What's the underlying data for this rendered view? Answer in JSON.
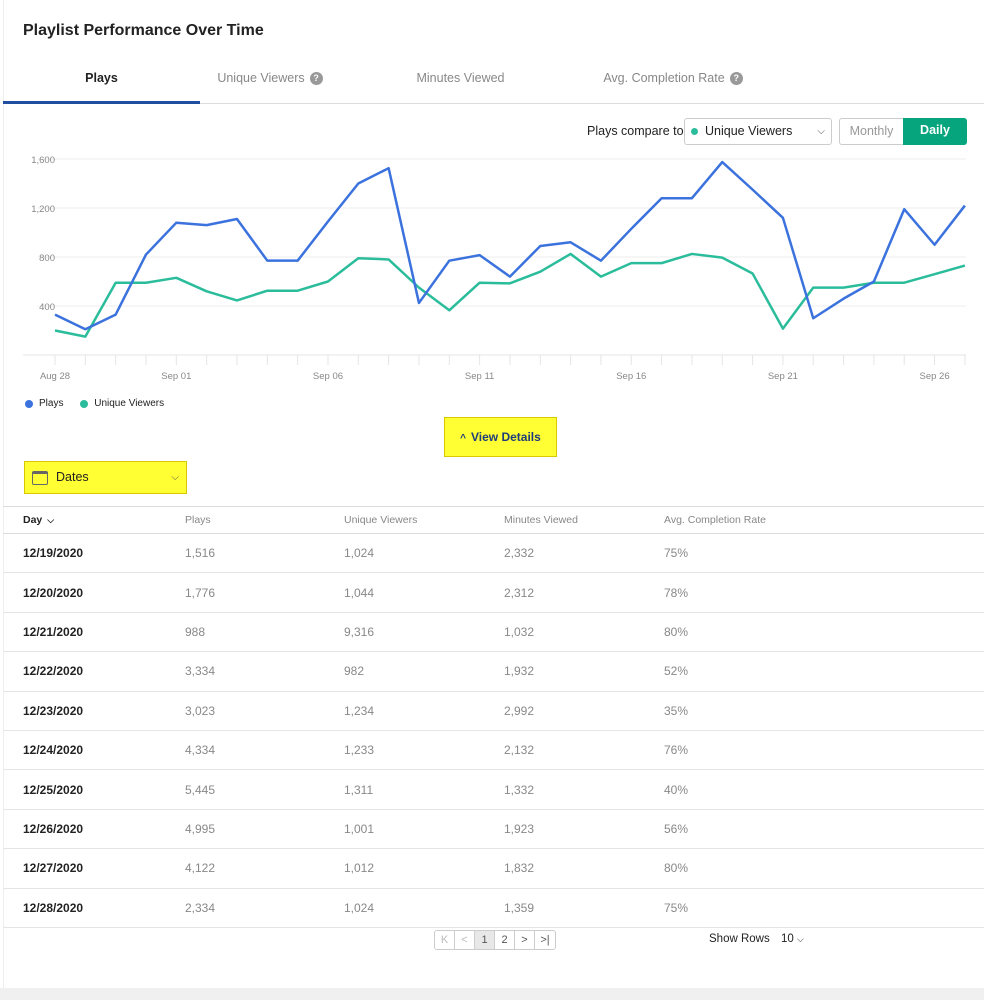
{
  "title": "Playlist Performance Over Time",
  "tabs": [
    {
      "label": "Plays",
      "active": true,
      "help": false
    },
    {
      "label": "Unique Viewers",
      "active": false,
      "help": true
    },
    {
      "label": "Minutes Viewed",
      "active": false,
      "help": false
    },
    {
      "label": "Avg. Completion Rate",
      "active": false,
      "help": true
    }
  ],
  "help_glyph": "?",
  "controls": {
    "compare_label": "Plays compare to",
    "compare_value": "Unique Viewers",
    "monthly": "Monthly",
    "daily": "Daily",
    "chevron": "⌵"
  },
  "colors": {
    "plays": "#3b72dd",
    "unique": "#2bbd9b",
    "accent": "#07a57e"
  },
  "chart_data": {
    "type": "line",
    "x_start": "Aug 28",
    "x_tick_labels": [
      "Aug 28",
      "Sep 01",
      "Sep 06",
      "Sep 11",
      "Sep 16",
      "Sep 21",
      "Sep 26"
    ],
    "x_tick_indices": [
      0,
      4,
      9,
      14,
      19,
      24,
      29
    ],
    "y_ticks": [
      400,
      800,
      1200,
      1600
    ],
    "y_tick_labels": [
      "400",
      "800",
      "1,200",
      "1,600"
    ],
    "ylim": [
      0,
      1600
    ],
    "grid": true,
    "legend": "bottom-left",
    "series": [
      {
        "name": "Plays",
        "values": [
          330,
          210,
          330,
          820,
          1080,
          1060,
          1110,
          770,
          770,
          1090,
          1400,
          1525,
          425,
          770,
          815,
          640,
          890,
          920,
          770,
          1030,
          1280,
          1280,
          1575,
          1350,
          1120,
          300,
          460,
          600,
          1190,
          900,
          1220
        ]
      },
      {
        "name": "Unique Viewers",
        "values": [
          200,
          150,
          590,
          590,
          630,
          520,
          445,
          525,
          525,
          600,
          790,
          780,
          550,
          365,
          590,
          585,
          680,
          825,
          640,
          750,
          750,
          825,
          795,
          665,
          215,
          550,
          550,
          590,
          590,
          660,
          730
        ]
      }
    ]
  },
  "legend": [
    "Plays",
    "Unique Viewers"
  ],
  "view_details": "View Details",
  "view_details_icon": "^",
  "dates_filter": "Dates",
  "table": {
    "headers": [
      "Day",
      "Plays",
      "Unique Viewers",
      "Minutes Viewed",
      "Avg. Completion Rate"
    ],
    "sort_icon": "⌵",
    "rows": [
      [
        "12/19/2020",
        "1,516",
        "1,024",
        "2,332",
        "75%"
      ],
      [
        "12/20/2020",
        "1,776",
        "1,044",
        "2,312",
        "78%"
      ],
      [
        "12/21/2020",
        "988",
        "9,316",
        "1,032",
        "80%"
      ],
      [
        "12/22/2020",
        "3,334",
        "982",
        "1,932",
        "52%"
      ],
      [
        "12/23/2020",
        "3,023",
        "1,234",
        "2,992",
        "35%"
      ],
      [
        "12/24/2020",
        "4,334",
        "1,233",
        "2,132",
        "76%"
      ],
      [
        "12/25/2020",
        "5,445",
        "1,311",
        "1,332",
        "40%"
      ],
      [
        "12/26/2020",
        "4,995",
        "1,001",
        "1,923",
        "56%"
      ],
      [
        "12/27/2020",
        "4,122",
        "1,012",
        "1,832",
        "80%"
      ],
      [
        "12/28/2020",
        "2,334",
        "1,024",
        "1,359",
        "75%"
      ]
    ]
  },
  "pagination": {
    "first": "K",
    "prev": "<",
    "pages": [
      "1",
      "2"
    ],
    "current": "1",
    "next": ">",
    "last": ">|",
    "show_rows_label": "Show Rows",
    "rows_value": "10"
  }
}
